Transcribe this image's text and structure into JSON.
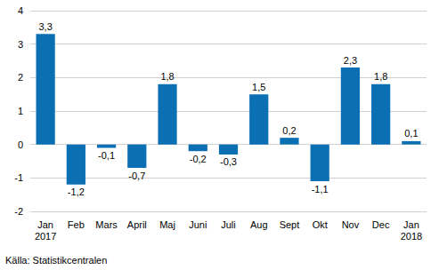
{
  "chart_data": {
    "type": "bar",
    "categories": [
      "Jan\n2017",
      "Feb",
      "Mars",
      "April",
      "Maj",
      "Juni",
      "Juli",
      "Aug",
      "Sept",
      "Okt",
      "Nov",
      "Dec",
      "Jan\n2018"
    ],
    "values": [
      3.3,
      -1.2,
      -0.1,
      -0.7,
      1.8,
      -0.2,
      -0.3,
      1.5,
      0.2,
      -1.1,
      2.3,
      1.8,
      0.1
    ],
    "value_labels": [
      "3,3",
      "-1,2",
      "-0,1",
      "-0,7",
      "1,8",
      "-0,2",
      "-0,3",
      "1,5",
      "0,2",
      "-1,1",
      "2,3",
      "1,8",
      "0,1"
    ],
    "color": "#0b6fb4",
    "ylim": [
      -2,
      4
    ],
    "yticks": [
      -2,
      -1,
      0,
      1,
      2,
      3,
      4
    ],
    "grid": true,
    "data_labels": true,
    "annotations": [
      "Källa: Statistikcentralen"
    ]
  }
}
